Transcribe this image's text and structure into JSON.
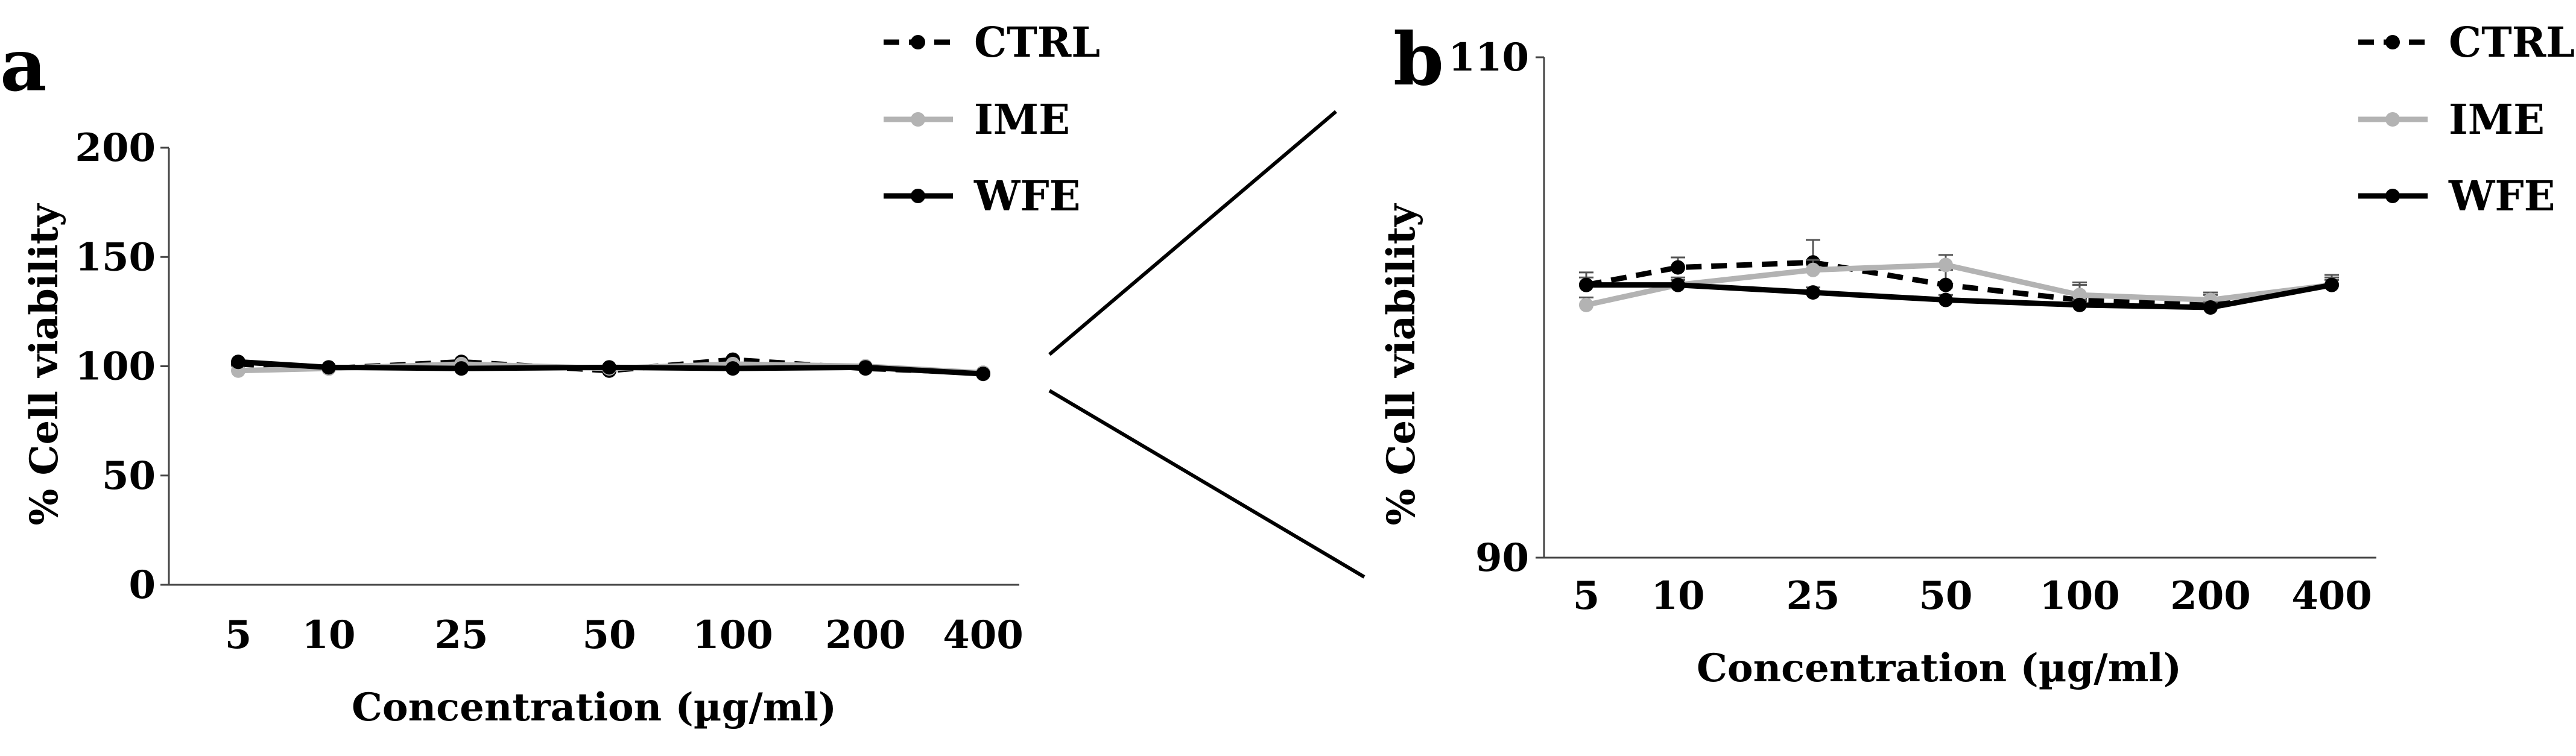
{
  "chart_data": [
    {
      "panel": "a",
      "type": "line",
      "categories": [
        "5",
        "10",
        "25",
        "50",
        "100",
        "200",
        "400"
      ],
      "xlabel": "Concentration (µg/ml)",
      "ylabel": "% Cell viability",
      "ylim": [
        0,
        200
      ],
      "yticks": [
        "0",
        "50",
        "100",
        "150",
        "200"
      ],
      "legend_position": "top-right",
      "series": [
        {
          "name": "CTRL",
          "color": "#000000",
          "dash": true,
          "values": [
            101,
            99,
            102,
            98,
            103,
            99,
            97
          ]
        },
        {
          "name": "IME",
          "color": "#b3b3b3",
          "dash": false,
          "values": [
            98,
            99,
            101,
            99,
            101,
            100,
            97
          ]
        },
        {
          "name": "WFE",
          "color": "#000000",
          "dash": false,
          "values": [
            102,
            99.5,
            99,
            99.5,
            99,
            99.5,
            96.5
          ]
        }
      ]
    },
    {
      "panel": "b",
      "type": "line",
      "categories": [
        "5",
        "10",
        "25",
        "50",
        "100",
        "200",
        "400"
      ],
      "xlabel": "Concentration (µg/ml)",
      "ylabel": "% Cell viability",
      "ylim": [
        90,
        110
      ],
      "yticks": [
        "90",
        "110"
      ],
      "legend_position": "top-right",
      "series": [
        {
          "name": "CTRL",
          "color": "#000000",
          "dash": true,
          "values": [
            100.9,
            101.6,
            101.8,
            100.9,
            100.3,
            100.1,
            100.9
          ],
          "errors": [
            0.5,
            0.4,
            0.9,
            0.6,
            0.7,
            0.4,
            0.4
          ]
        },
        {
          "name": "IME",
          "color": "#b3b3b3",
          "dash": false,
          "values": [
            100.1,
            100.9,
            101.5,
            101.7,
            100.5,
            100.3,
            100.9
          ],
          "errors": [
            0.3,
            0.3,
            0.4,
            0.4,
            0.4,
            0.3,
            0.3
          ]
        },
        {
          "name": "WFE",
          "color": "#000000",
          "dash": false,
          "values": [
            100.9,
            100.9,
            100.6,
            100.3,
            100.1,
            100.0,
            100.9
          ],
          "errors": [
            0.3,
            0.2,
            0.2,
            0.2,
            0.2,
            0.2,
            0.2
          ]
        }
      ]
    }
  ]
}
